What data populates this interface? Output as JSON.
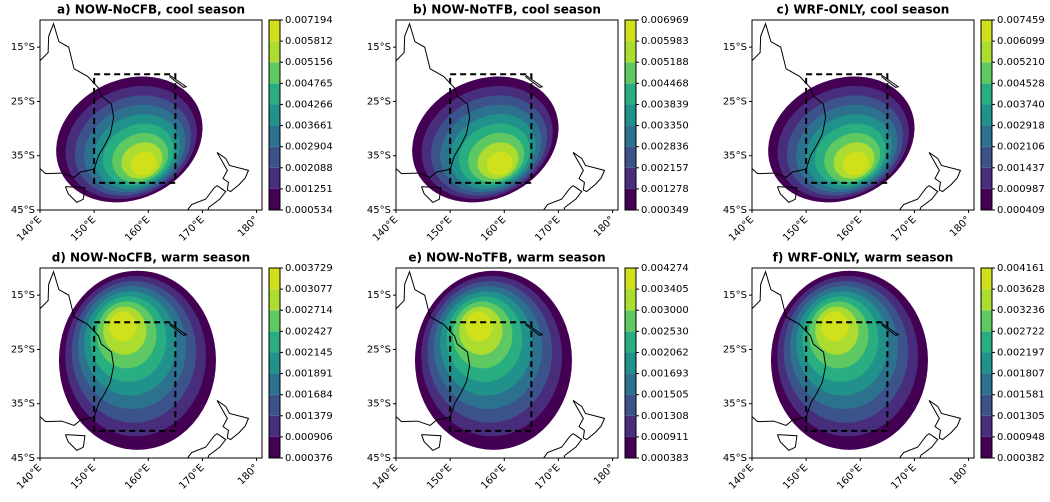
{
  "chart_data": [
    {
      "type": "contour",
      "title": "a) NOW-NoCFB, cool season",
      "season": "cool",
      "xlim": [
        140,
        181
      ],
      "ylim": [
        -45,
        -10
      ],
      "xticks": [
        {
          "value": 140,
          "label": "140°E"
        },
        {
          "value": 150,
          "label": "150°E"
        },
        {
          "value": 160,
          "label": "160°E"
        },
        {
          "value": 170,
          "label": "170°E"
        },
        {
          "value": 180,
          "label": "180°"
        }
      ],
      "yticks": [
        {
          "value": -15,
          "label": "15°S"
        },
        {
          "value": -25,
          "label": "25°S"
        },
        {
          "value": -35,
          "label": "35°S"
        },
        {
          "value": -45,
          "label": "45°S"
        }
      ],
      "colorbar_ticks": [
        0.000534,
        0.001251,
        0.002088,
        0.002904,
        0.003661,
        0.004266,
        0.004765,
        0.005156,
        0.005812,
        0.007194
      ]
    },
    {
      "type": "contour",
      "title": "b) NOW-NoTFB, cool season",
      "season": "cool",
      "xlim": [
        140,
        181
      ],
      "ylim": [
        -45,
        -10
      ],
      "xticks": [
        {
          "value": 140,
          "label": "140°E"
        },
        {
          "value": 150,
          "label": "150°E"
        },
        {
          "value": 160,
          "label": "160°E"
        },
        {
          "value": 170,
          "label": "170°E"
        },
        {
          "value": 180,
          "label": "180°"
        }
      ],
      "yticks": [
        {
          "value": -15,
          "label": "15°S"
        },
        {
          "value": -25,
          "label": "25°S"
        },
        {
          "value": -35,
          "label": "35°S"
        },
        {
          "value": -45,
          "label": "45°S"
        }
      ],
      "colorbar_ticks": [
        0.000349,
        0.001278,
        0.002157,
        0.002836,
        {
          "value": 0.00335,
          "label": "0.003350"
        },
        0.003839,
        0.004468,
        0.005188,
        0.005983,
        0.006969
      ]
    },
    {
      "type": "contour",
      "title": "c) WRF-ONLY, cool season",
      "season": "cool",
      "xlim": [
        140,
        181
      ],
      "ylim": [
        -45,
        -10
      ],
      "xticks": [
        {
          "value": 140,
          "label": "140°E"
        },
        {
          "value": 150,
          "label": "150°E"
        },
        {
          "value": 160,
          "label": "160°E"
        },
        {
          "value": 170,
          "label": "170°E"
        },
        {
          "value": 180,
          "label": "180°"
        }
      ],
      "yticks": [
        {
          "value": -15,
          "label": "15°S"
        },
        {
          "value": -25,
          "label": "25°S"
        },
        {
          "value": -35,
          "label": "35°S"
        },
        {
          "value": -45,
          "label": "45°S"
        }
      ],
      "colorbar_ticks": [
        0.000409,
        0.000987,
        0.001437,
        0.002106,
        0.002918,
        {
          "value": 0.00374,
          "label": "0.003740"
        },
        0.004528,
        {
          "value": 0.00521,
          "label": "0.005210"
        },
        0.006099,
        0.007459
      ]
    },
    {
      "type": "contour",
      "title": "d) NOW-NoCFB, warm season",
      "season": "warm",
      "xlim": [
        140,
        181
      ],
      "ylim": [
        -45,
        -10
      ],
      "xticks": [
        {
          "value": 140,
          "label": "140°E"
        },
        {
          "value": 150,
          "label": "150°E"
        },
        {
          "value": 160,
          "label": "160°E"
        },
        {
          "value": 170,
          "label": "170°E"
        },
        {
          "value": 180,
          "label": "180°"
        }
      ],
      "yticks": [
        {
          "value": -15,
          "label": "15°S"
        },
        {
          "value": -25,
          "label": "25°S"
        },
        {
          "value": -35,
          "label": "35°S"
        },
        {
          "value": -45,
          "label": "45°S"
        }
      ],
      "colorbar_ticks": [
        0.000376,
        0.000906,
        0.001379,
        0.001684,
        0.001891,
        0.002145,
        0.002427,
        0.002714,
        0.003077,
        0.003729
      ]
    },
    {
      "type": "contour",
      "title": "e) NOW-NoTFB, warm season",
      "season": "warm",
      "xlim": [
        140,
        181
      ],
      "ylim": [
        -45,
        -10
      ],
      "xticks": [
        {
          "value": 140,
          "label": "140°E"
        },
        {
          "value": 150,
          "label": "150°E"
        },
        {
          "value": 160,
          "label": "160°E"
        },
        {
          "value": 170,
          "label": "170°E"
        },
        {
          "value": 180,
          "label": "180°"
        }
      ],
      "yticks": [
        {
          "value": -15,
          "label": "15°S"
        },
        {
          "value": -25,
          "label": "25°S"
        },
        {
          "value": -35,
          "label": "35°S"
        },
        {
          "value": -45,
          "label": "45°S"
        }
      ],
      "colorbar_ticks": [
        0.000383,
        0.000911,
        0.001308,
        0.001505,
        0.001693,
        0.002062,
        {
          "value": 0.00253,
          "label": "0.002530"
        },
        {
          "value": 0.003,
          "label": "0.003000"
        },
        0.003405,
        0.004274
      ]
    },
    {
      "type": "contour",
      "title": "f) WRF-ONLY, warm season",
      "season": "warm",
      "xlim": [
        140,
        181
      ],
      "ylim": [
        -45,
        -10
      ],
      "xticks": [
        {
          "value": 140,
          "label": "140°E"
        },
        {
          "value": 150,
          "label": "150°E"
        },
        {
          "value": 160,
          "label": "160°E"
        },
        {
          "value": 170,
          "label": "170°E"
        },
        {
          "value": 180,
          "label": "180°"
        }
      ],
      "yticks": [
        {
          "value": -15,
          "label": "15°S"
        },
        {
          "value": -25,
          "label": "25°S"
        },
        {
          "value": -35,
          "label": "35°S"
        },
        {
          "value": -45,
          "label": "45°S"
        }
      ],
      "colorbar_ticks": [
        0.000382,
        0.000948,
        0.001305,
        0.001581,
        0.001807,
        0.002197,
        0.002722,
        0.003236,
        0.003628,
        0.004161
      ]
    }
  ]
}
